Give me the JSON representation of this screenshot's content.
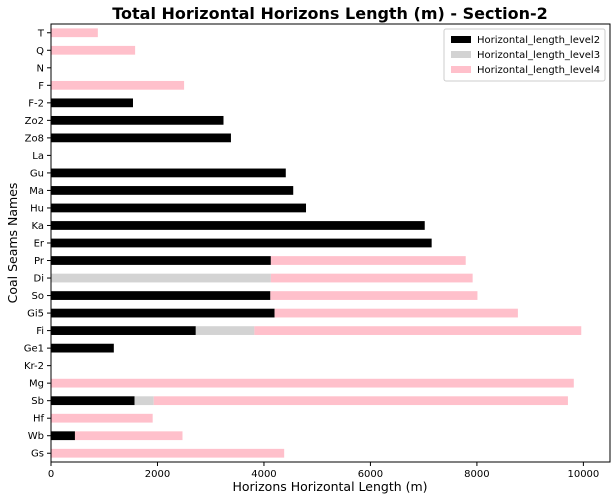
{
  "chart_data": {
    "type": "bar",
    "orientation": "horizontal",
    "stacked": true,
    "title": "Total Horizontal Horizons Length (m) - Section-2",
    "xlabel": "Horizons Horizontal Length (m)",
    "ylabel": "Coal Seams Names",
    "xlim": [
      0,
      10500
    ],
    "xticks": [
      0,
      2000,
      4000,
      6000,
      8000,
      10000
    ],
    "grid": false,
    "legend_position": "top-right",
    "categories": [
      "Gs",
      "Wb",
      "Hf",
      "Sb",
      "Mg",
      "Kr-2",
      "Ge1",
      "Fi",
      "Gi5",
      "So",
      "Di",
      "Pr",
      "Er",
      "Ka",
      "Hu",
      "Ma",
      "Gu",
      "La",
      "Zo8",
      "Zo2",
      "F-2",
      "F",
      "N",
      "Q",
      "T"
    ],
    "series": [
      {
        "name": "Horizontal_length_level2",
        "color": "#000000",
        "values": [
          0,
          450,
          0,
          1570,
          0,
          0,
          1180,
          2720,
          4200,
          4120,
          0,
          4130,
          7150,
          7020,
          4790,
          4550,
          4410,
          0,
          3380,
          3240,
          1540,
          0,
          0,
          0,
          0
        ]
      },
      {
        "name": "Horizontal_length_level3",
        "color": "#d3d3d3",
        "values": [
          0,
          0,
          0,
          360,
          0,
          0,
          0,
          1100,
          0,
          0,
          4130,
          0,
          0,
          0,
          0,
          0,
          0,
          0,
          0,
          0,
          0,
          0,
          0,
          0,
          0
        ]
      },
      {
        "name": "Horizontal_length_level4",
        "color": "#ffc0cb",
        "values": [
          4380,
          2020,
          1910,
          7780,
          9820,
          0,
          0,
          6140,
          4570,
          3890,
          3790,
          3660,
          0,
          0,
          0,
          0,
          0,
          0,
          0,
          0,
          0,
          2500,
          0,
          1580,
          880
        ]
      }
    ]
  }
}
